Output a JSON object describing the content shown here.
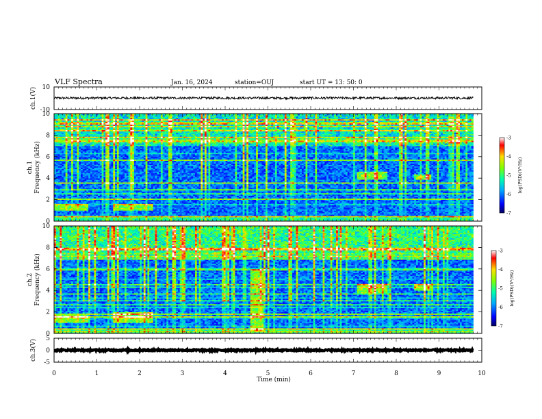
{
  "header": {
    "title": "VLF Spectra",
    "date": "Jan. 16, 2024",
    "station": "station=OUJ",
    "start_time": "start  UT =   13: 50: 0"
  },
  "chart_data": [
    {
      "id": "ch1_waveform",
      "type": "line",
      "ylabel": "ch.1(V)",
      "ylim": [
        -10,
        10
      ],
      "yticks": [
        "10",
        "-10"
      ],
      "xlim": [
        0,
        10
      ],
      "mean": 0.2,
      "noise_amplitude": 1.0,
      "data_end_min": 9.8
    },
    {
      "id": "ch1_spectrogram",
      "type": "heatmap",
      "ylabel": "ch.1\nFrequency (kHz)",
      "ylabel_line1": "ch.1",
      "ylabel_line2": "Frequency (kHz)",
      "ylim": [
        0,
        10
      ],
      "yticks": [
        "0",
        "2",
        "4",
        "6",
        "8",
        "10"
      ],
      "xlim": [
        0,
        10
      ],
      "colorbar": {
        "label": "log(PSD)(V²/Hz)",
        "range": [
          -7,
          -3
        ],
        "ticks": [
          "-3",
          "-4",
          "-5",
          "-6",
          "-7"
        ]
      },
      "noise_bands": [
        {
          "from_min": 0.0,
          "to_min": 0.8,
          "f_lo_khz": 1.0,
          "f_hi_khz": 1.6
        },
        {
          "from_min": 1.4,
          "to_min": 2.3,
          "f_lo_khz": 1.0,
          "f_hi_khz": 1.6
        },
        {
          "from_min": 7.1,
          "to_min": 7.8,
          "f_lo_khz": 3.9,
          "f_hi_khz": 4.6
        },
        {
          "from_min": 8.4,
          "to_min": 8.8,
          "f_lo_khz": 3.9,
          "f_hi_khz": 4.4
        }
      ],
      "data_end_min": 9.8
    },
    {
      "id": "ch2_spectrogram",
      "type": "heatmap",
      "ylabel": "ch.2\nFrequency (kHz)",
      "ylabel_line1": "ch.2",
      "ylabel_line2": "Frequency (kHz)",
      "ylim": [
        0,
        10
      ],
      "yticks": [
        "0",
        "2",
        "4",
        "6",
        "8",
        "10"
      ],
      "xlim": [
        0,
        10
      ],
      "colorbar": {
        "label": "log(PSD)(V²/Hz)",
        "range": [
          -7,
          -3
        ],
        "ticks": [
          "-3",
          "-4",
          "-5",
          "-6",
          "-7"
        ]
      },
      "noise_bands": [
        {
          "from_min": 0.0,
          "to_min": 0.8,
          "f_lo_khz": 1.0,
          "f_hi_khz": 1.8
        },
        {
          "from_min": 1.4,
          "to_min": 2.3,
          "f_lo_khz": 1.0,
          "f_hi_khz": 2.0
        },
        {
          "from_min": 4.6,
          "to_min": 4.9,
          "f_lo_khz": 0.2,
          "f_hi_khz": 6.0
        },
        {
          "from_min": 7.1,
          "to_min": 7.8,
          "f_lo_khz": 3.8,
          "f_hi_khz": 4.6
        },
        {
          "from_min": 8.4,
          "to_min": 8.8,
          "f_lo_khz": 4.0,
          "f_hi_khz": 4.6
        }
      ],
      "data_end_min": 9.8
    },
    {
      "id": "ch3_waveform",
      "type": "line",
      "ylabel": "ch.3(V)",
      "ylim": [
        -5,
        5
      ],
      "yticks": [
        "5",
        "0",
        "-5"
      ],
      "xlim": [
        0,
        10
      ],
      "mean": 0.0,
      "noise_amplitude": 0.3,
      "data_end_min": 9.8
    }
  ],
  "x_axis": {
    "label": "Time (min)",
    "ticks": [
      "0",
      "1",
      "2",
      "3",
      "4",
      "5",
      "6",
      "7",
      "8",
      "9",
      "10"
    ]
  },
  "colors": {
    "waveform": "#000000",
    "frame": "#000000",
    "background": "#ffffff"
  }
}
